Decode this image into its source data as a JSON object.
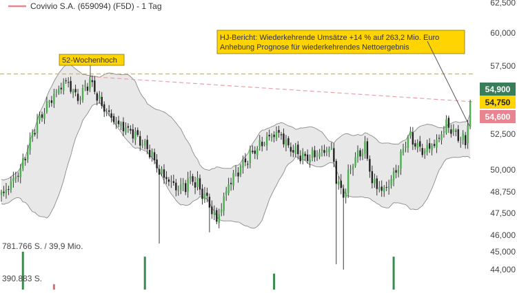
{
  "chart_data": {
    "type": "candlestick",
    "title": "Covivio S.A. (659094) (F5D) - 1 Tag",
    "series_color": "#4caf50",
    "y_axis": {
      "ticks": [
        "62,500",
        "60,000",
        "57,500",
        "55,000",
        "52,500",
        "50,000",
        "48,750",
        "47,500",
        "46,000",
        "45,000",
        "44,000"
      ],
      "tick_values": [
        62500,
        60000,
        57500,
        55000,
        52500,
        50000,
        48750,
        47500,
        46000,
        45000,
        44000
      ]
    },
    "price_labels": [
      {
        "text": "54,900",
        "value": 54900,
        "color": "#3a7d5a"
      },
      {
        "text": "54,750",
        "value": 54750,
        "color": "#ffd400"
      },
      {
        "text": "54,600",
        "value": 54600,
        "color": "#e8848f"
      }
    ],
    "reference_lines": [
      {
        "name": "52-week-high",
        "style": "dashed",
        "color": "#e6b800",
        "value": 56900
      },
      {
        "name": "trendline",
        "style": "dashed",
        "color": "#e8a0a8",
        "from": {
          "bar": 37,
          "value": 56700
        },
        "to": {
          "bar": 196,
          "value": 54800
        }
      }
    ],
    "annotations": [
      {
        "text": "52-Wochenhoch",
        "bar": 27,
        "value": 56900
      },
      {
        "lines": [
          "HJ-Bericht: Wiederkehrende Umsätze +14 % auf 263,2 Mio. Euro",
          "Anhebung Prognose für wiederkehrendes Nettoergebnis"
        ],
        "bar": 196,
        "value": 54900
      }
    ],
    "volume_labels": [
      "781.766 S. / 39,9 Mio.",
      "390.883 S."
    ],
    "volume_levels": [
      781766,
      390883
    ],
    "volume_spikes": [
      {
        "bar": 9,
        "value": 781766
      },
      {
        "bar": 22,
        "value": 110000
      },
      {
        "bar": 60,
        "value": 680000
      },
      {
        "bar": 114,
        "value": 330000
      },
      {
        "bar": 164,
        "value": 680000
      }
    ],
    "bollinger": true,
    "bars": 197
  }
}
